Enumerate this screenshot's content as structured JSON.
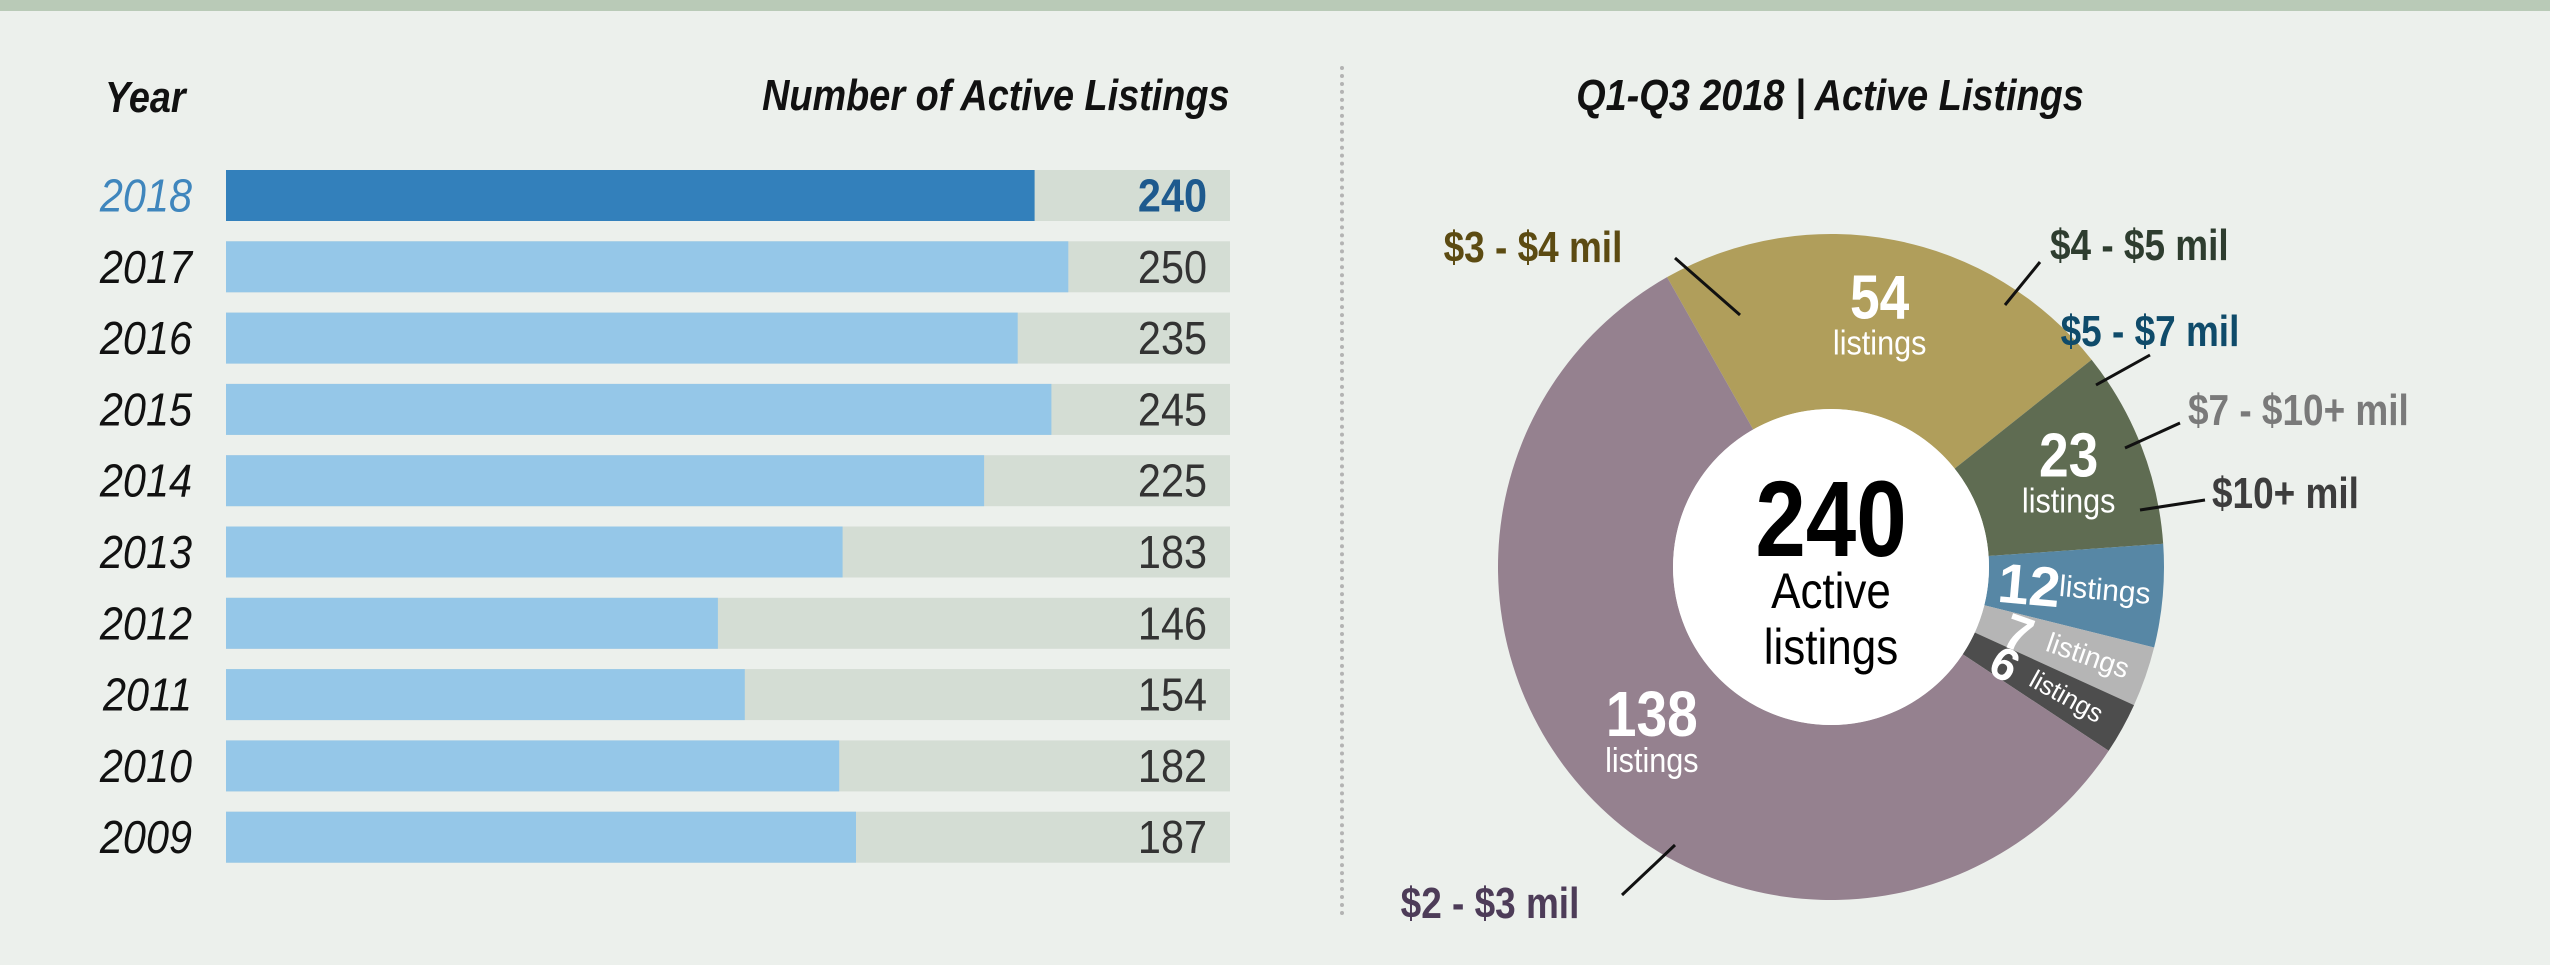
{
  "bar_panel": {
    "year_header": "Year",
    "count_header": "Number of Active Listings"
  },
  "donut_panel": {
    "title": "Q1-Q3 2018 | Active Listings",
    "center_value": "240",
    "center_line1": "Active",
    "center_line2": "listings",
    "slice_unit": "listings"
  },
  "chart_data": [
    {
      "type": "bar",
      "orientation": "horizontal",
      "xlabel": "Number of Active Listings",
      "ylabel": "Year",
      "categories": [
        "2018",
        "2017",
        "2016",
        "2015",
        "2014",
        "2013",
        "2012",
        "2011",
        "2010",
        "2009"
      ],
      "values": [
        240,
        250,
        235,
        245,
        225,
        183,
        146,
        154,
        182,
        187
      ],
      "xlim": [
        0,
        298
      ],
      "highlight": "2018",
      "colors": {
        "highlight": "#3380bb",
        "bar": "#95c7e8",
        "track": "#d4ddd4",
        "highlight_text": "#1e5a8e",
        "text": "#333333",
        "year_highlight": "#3f86bd"
      },
      "grid": false,
      "legend": "none"
    },
    {
      "type": "pie",
      "donut": true,
      "title": "Q1-Q3 2018 | Active Listings",
      "total": 240,
      "slices": [
        {
          "label": "$3 - $4 mil",
          "value": 54,
          "color": "#b09e5b",
          "label_color": "#5c4b12"
        },
        {
          "label": "$4 - $5 mil",
          "value": 23,
          "color": "#5f6c52",
          "label_color": "#2e3d2f"
        },
        {
          "label": "$5 - $7 mil",
          "value": 12,
          "color": "#5787a5",
          "label_color": "#0f4b6a"
        },
        {
          "label": "$7 - $10+ mil",
          "value": 7,
          "color": "#b5b5b5",
          "label_color": "#7a7a7a"
        },
        {
          "label": "$10+ mil",
          "value": 6,
          "color": "#4d4d4d",
          "label_color": "#3d3d3d"
        },
        {
          "label": "$2 - $3 mil",
          "value": 138,
          "color": "#95818f",
          "label_color": "#4d3c58"
        }
      ],
      "legend": "none"
    }
  ]
}
